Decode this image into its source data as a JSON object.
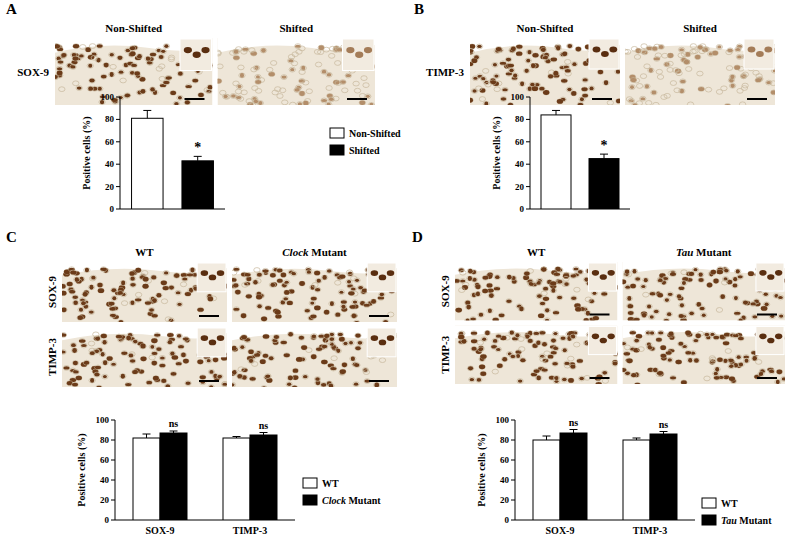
{
  "chart_data": [
    {
      "type": "bar",
      "title": "A",
      "categories": [
        null
      ],
      "series": [
        {
          "name": "Non-Shifted",
          "color": "#ffffff",
          "values": [
            81
          ],
          "errors": [
            7
          ]
        },
        {
          "name": "Shifted",
          "color": "#000000",
          "values": [
            43
          ],
          "errors": [
            4
          ]
        }
      ],
      "y_label": "Positive cells (%)",
      "ylim": [
        0,
        100
      ],
      "yticks": [
        0,
        20,
        40,
        60,
        80,
        100
      ],
      "legend": "right",
      "annotations": {
        "image_label": "SOX-9",
        "significance": [
          "*"
        ]
      }
    },
    {
      "type": "bar",
      "title": "B",
      "categories": [
        null
      ],
      "series": [
        {
          "name": "Non-Shifted",
          "color": "#ffffff",
          "values": [
            84
          ],
          "errors": [
            4
          ]
        },
        {
          "name": "Shifted",
          "color": "#000000",
          "values": [
            45
          ],
          "errors": [
            4
          ]
        }
      ],
      "y_label": "Positive cells (%)",
      "ylim": [
        0,
        100
      ],
      "yticks": [
        0,
        20,
        40,
        60,
        80,
        100
      ],
      "annotations": {
        "image_label": "TIMP-3",
        "significance": [
          "*"
        ]
      }
    },
    {
      "type": "bar",
      "title": "C",
      "categories": [
        "SOX-9",
        "TIMP-3"
      ],
      "series": [
        {
          "name": "WT",
          "color": "#ffffff",
          "values": [
            82,
            82
          ],
          "errors": [
            4,
            1.5
          ]
        },
        {
          "name": "Clock Mutant",
          "color": "#000000",
          "values": [
            87,
            85
          ],
          "errors": [
            2,
            2.5
          ]
        }
      ],
      "y_label": "Positive cells (%)",
      "ylim": [
        0,
        100
      ],
      "yticks": [
        0,
        20,
        40,
        60,
        80,
        100
      ],
      "legend": "right",
      "annotations": {
        "significance": [
          "ns",
          "ns"
        ]
      }
    },
    {
      "type": "bar",
      "title": "D",
      "categories": [
        "SOX-9",
        "TIMP-3"
      ],
      "series": [
        {
          "name": "WT",
          "color": "#ffffff",
          "values": [
            80,
            80
          ],
          "errors": [
            4,
            2
          ]
        },
        {
          "name": "Tau Mutant",
          "color": "#000000",
          "values": [
            87,
            86
          ],
          "errors": [
            3.5,
            2.5
          ]
        }
      ],
      "y_label": "Positive cells (%)",
      "ylim": [
        0,
        100
      ],
      "yticks": [
        0,
        20,
        40,
        60,
        80,
        100
      ],
      "legend": "right",
      "annotations": {
        "significance": [
          "ns",
          "ns"
        ]
      }
    }
  ]
}
